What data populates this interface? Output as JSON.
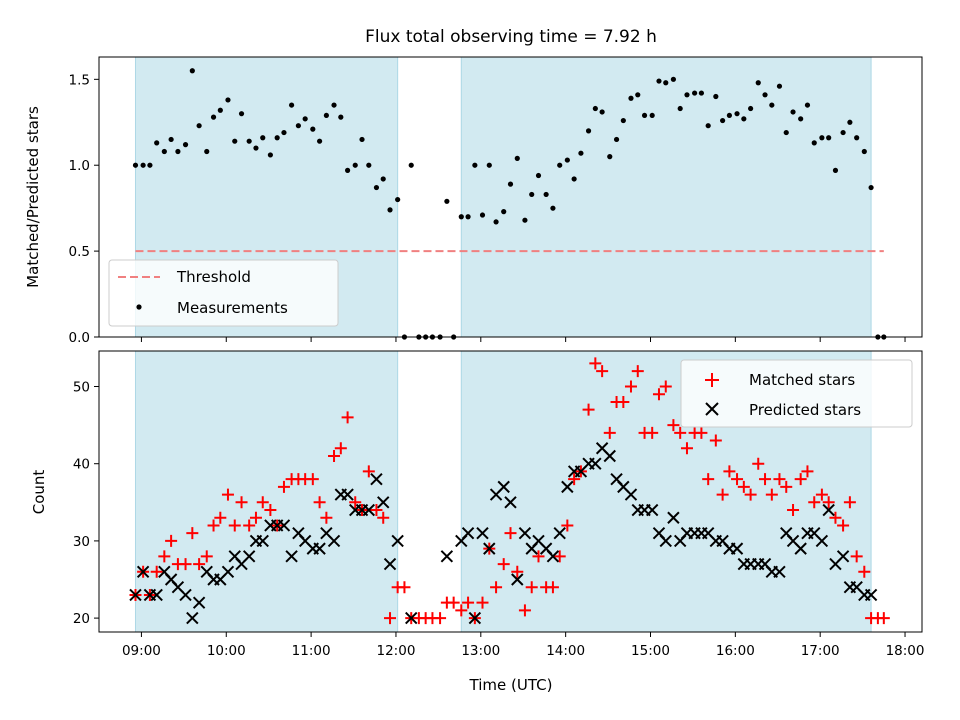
{
  "title": "Flux total observing time = 7.92 h",
  "colors": {
    "shade": "#add8e6",
    "threshold": "#f08080",
    "measurement": "#000000",
    "matched": "#ff0000",
    "predicted": "#000000"
  },
  "chart_data": [
    {
      "type": "scatter",
      "title": "Flux total observing time = 7.92 h",
      "xlabel": "",
      "ylabel": "Matched/Predicted stars",
      "x_unit": "hours (UTC)",
      "xlim": [
        8.5,
        18.2
      ],
      "ylim": [
        0,
        1.63
      ],
      "yticks": [
        0.0,
        0.5,
        1.0,
        1.5
      ],
      "ytick_labels": [
        "0.0",
        "0.5",
        "1.0",
        "1.5"
      ],
      "xticks": [
        9,
        10,
        11,
        12,
        13,
        14,
        15,
        16,
        17,
        18
      ],
      "xtick_labels": [
        "09:00",
        "10:00",
        "11:00",
        "12:00",
        "13:00",
        "14:00",
        "15:00",
        "16:00",
        "17:00",
        "18:00"
      ],
      "shaded_intervals": [
        [
          8.93,
          12.02
        ],
        [
          12.77,
          17.6
        ]
      ],
      "threshold": {
        "name": "Threshold",
        "y": 0.5,
        "x_range": [
          8.93,
          17.75
        ]
      },
      "legend": {
        "position": "lower-left",
        "entries": [
          "Threshold",
          "Measurements"
        ]
      },
      "series": [
        {
          "name": "Measurements",
          "x": [
            8.93,
            9.02,
            9.1,
            9.18,
            9.27,
            9.35,
            9.43,
            9.52,
            9.6,
            9.68,
            9.77,
            9.85,
            9.93,
            10.02,
            10.1,
            10.18,
            10.27,
            10.35,
            10.43,
            10.52,
            10.6,
            10.68,
            10.77,
            10.85,
            10.93,
            11.02,
            11.1,
            11.18,
            11.27,
            11.35,
            11.43,
            11.52,
            11.6,
            11.68,
            11.77,
            11.85,
            11.93,
            12.02,
            12.1,
            12.18,
            12.27,
            12.35,
            12.43,
            12.52,
            12.6,
            12.68,
            12.77,
            12.85,
            12.93,
            13.02,
            13.1,
            13.18,
            13.27,
            13.35,
            13.43,
            13.52,
            13.6,
            13.68,
            13.77,
            13.85,
            13.93,
            14.02,
            14.1,
            14.18,
            14.27,
            14.35,
            14.43,
            14.52,
            14.6,
            14.68,
            14.77,
            14.85,
            14.93,
            15.02,
            15.1,
            15.18,
            15.27,
            15.35,
            15.43,
            15.52,
            15.6,
            15.68,
            15.77,
            15.85,
            15.93,
            16.02,
            16.1,
            16.18,
            16.27,
            16.35,
            16.43,
            16.52,
            16.6,
            16.68,
            16.77,
            16.85,
            16.93,
            17.02,
            17.1,
            17.18,
            17.27,
            17.35,
            17.43,
            17.52,
            17.6,
            17.68,
            17.75
          ],
          "y": [
            1.0,
            1.0,
            1.0,
            1.13,
            1.08,
            1.15,
            1.08,
            1.12,
            1.55,
            1.23,
            1.08,
            1.28,
            1.32,
            1.38,
            1.14,
            1.3,
            1.14,
            1.1,
            1.16,
            1.06,
            1.16,
            1.19,
            1.35,
            1.23,
            1.27,
            1.21,
            1.14,
            1.29,
            1.35,
            1.28,
            0.97,
            1.0,
            1.15,
            1.0,
            0.87,
            0.92,
            0.74,
            0.8,
            0.0,
            1.0,
            0.0,
            0.0,
            0.0,
            0.0,
            0.79,
            0.0,
            0.7,
            0.7,
            1.0,
            0.71,
            1.0,
            0.67,
            0.73,
            0.89,
            1.04,
            0.68,
            0.83,
            0.94,
            0.83,
            0.75,
            1.0,
            1.03,
            0.92,
            1.07,
            1.2,
            1.33,
            1.31,
            1.05,
            1.15,
            1.26,
            1.39,
            1.41,
            1.29,
            1.29,
            1.49,
            1.48,
            1.5,
            1.33,
            1.41,
            1.42,
            1.42,
            1.23,
            1.4,
            1.26,
            1.29,
            1.3,
            1.27,
            1.33,
            1.48,
            1.41,
            1.35,
            1.46,
            1.19,
            1.31,
            1.27,
            1.35,
            1.13,
            1.16,
            1.16,
            0.97,
            1.19,
            1.25,
            1.16,
            1.08,
            0.87,
            0.0,
            0.0
          ]
        }
      ]
    },
    {
      "type": "scatter",
      "xlabel": "Time (UTC)",
      "ylabel": "Count",
      "x_unit": "hours (UTC)",
      "xlim": [
        8.5,
        18.2
      ],
      "ylim": [
        18.2,
        54.6
      ],
      "yticks": [
        20,
        30,
        40,
        50
      ],
      "ytick_labels": [
        "20",
        "30",
        "40",
        "50"
      ],
      "xticks": [
        9,
        10,
        11,
        12,
        13,
        14,
        15,
        16,
        17,
        18
      ],
      "xtick_labels": [
        "09:00",
        "10:00",
        "11:00",
        "12:00",
        "13:00",
        "14:00",
        "15:00",
        "16:00",
        "17:00",
        "18:00"
      ],
      "shaded_intervals": [
        [
          8.93,
          12.02
        ],
        [
          12.77,
          17.6
        ]
      ],
      "legend": {
        "position": "top-right",
        "entries": [
          "Matched stars",
          "Predicted stars"
        ]
      },
      "series": [
        {
          "name": "Matched stars",
          "x": [
            8.93,
            9.02,
            9.1,
            9.18,
            9.27,
            9.35,
            9.43,
            9.52,
            9.6,
            9.68,
            9.77,
            9.85,
            9.93,
            10.02,
            10.1,
            10.18,
            10.27,
            10.35,
            10.43,
            10.52,
            10.6,
            10.68,
            10.77,
            10.85,
            10.93,
            11.02,
            11.1,
            11.18,
            11.27,
            11.35,
            11.43,
            11.52,
            11.6,
            11.68,
            11.77,
            11.85,
            11.93,
            12.02,
            12.1,
            12.18,
            12.27,
            12.35,
            12.43,
            12.52,
            12.6,
            12.68,
            12.77,
            12.85,
            12.93,
            13.02,
            13.1,
            13.18,
            13.27,
            13.35,
            13.43,
            13.52,
            13.6,
            13.68,
            13.77,
            13.85,
            13.93,
            14.02,
            14.1,
            14.18,
            14.27,
            14.35,
            14.43,
            14.52,
            14.6,
            14.68,
            14.77,
            14.85,
            14.93,
            15.02,
            15.1,
            15.18,
            15.27,
            15.35,
            15.43,
            15.52,
            15.6,
            15.68,
            15.77,
            15.85,
            15.93,
            16.02,
            16.1,
            16.18,
            16.27,
            16.35,
            16.43,
            16.52,
            16.6,
            16.68,
            16.77,
            16.85,
            16.93,
            17.02,
            17.1,
            17.18,
            17.27,
            17.35,
            17.43,
            17.52,
            17.6,
            17.68,
            17.75
          ],
          "y": [
            23,
            26,
            23,
            26,
            28,
            30,
            27,
            27,
            31,
            27,
            28,
            32,
            33,
            36,
            32,
            35,
            32,
            33,
            35,
            34,
            32,
            37,
            38,
            38,
            38,
            38,
            35,
            33,
            41,
            42,
            46,
            35,
            34,
            39,
            34,
            33,
            20,
            24,
            24,
            20,
            20,
            20,
            20,
            20,
            22,
            22,
            21,
            22,
            20,
            22,
            29,
            24,
            27,
            31,
            26,
            21,
            24,
            28,
            24,
            24,
            28,
            32,
            38,
            39,
            47,
            53,
            52,
            44,
            48,
            48,
            50,
            52,
            44,
            44,
            49,
            50,
            45,
            44,
            42,
            44,
            44,
            38,
            43,
            36,
            39,
            38,
            37,
            36,
            40,
            38,
            36,
            38,
            37,
            34,
            38,
            39,
            35,
            36,
            35,
            33,
            32,
            35,
            28,
            26,
            20,
            20,
            20
          ]
        },
        {
          "name": "Predicted stars",
          "x": [
            8.93,
            9.02,
            9.1,
            9.18,
            9.27,
            9.35,
            9.43,
            9.52,
            9.6,
            9.68,
            9.77,
            9.85,
            9.93,
            10.02,
            10.1,
            10.18,
            10.27,
            10.35,
            10.43,
            10.52,
            10.6,
            10.68,
            10.77,
            10.85,
            10.93,
            11.02,
            11.1,
            11.18,
            11.27,
            11.35,
            11.43,
            11.52,
            11.6,
            11.68,
            11.77,
            11.85,
            11.93,
            12.02,
            12.18,
            12.6,
            12.77,
            12.85,
            12.93,
            13.02,
            13.1,
            13.18,
            13.27,
            13.35,
            13.43,
            13.52,
            13.6,
            13.68,
            13.77,
            13.85,
            13.93,
            14.02,
            14.1,
            14.18,
            14.27,
            14.35,
            14.43,
            14.52,
            14.6,
            14.68,
            14.77,
            14.85,
            14.93,
            15.02,
            15.1,
            15.18,
            15.27,
            15.35,
            15.43,
            15.52,
            15.6,
            15.68,
            15.77,
            15.85,
            15.93,
            16.02,
            16.1,
            16.18,
            16.27,
            16.35,
            16.43,
            16.52,
            16.6,
            16.68,
            16.77,
            16.85,
            16.93,
            17.02,
            17.1,
            17.18,
            17.27,
            17.35,
            17.43,
            17.52,
            17.6
          ],
          "y": [
            23,
            26,
            23,
            23,
            26,
            25,
            24,
            23,
            20,
            22,
            26,
            25,
            25,
            26,
            28,
            27,
            28,
            30,
            30,
            32,
            32,
            32,
            28,
            31,
            30,
            29,
            29,
            31,
            30,
            36,
            36,
            34,
            34,
            34,
            38,
            35,
            27,
            30,
            20,
            28,
            30,
            31,
            20,
            31,
            29,
            36,
            37,
            35,
            25,
            31,
            29,
            30,
            29,
            28,
            31,
            37,
            39,
            39,
            40,
            40,
            42,
            41,
            38,
            37,
            36,
            34,
            34,
            34,
            31,
            30,
            33,
            30,
            31,
            31,
            31,
            31,
            30,
            30,
            29,
            29,
            27,
            27,
            27,
            27,
            26,
            26,
            31,
            30,
            29,
            31,
            31,
            30,
            34,
            27,
            28,
            24,
            24,
            23,
            23
          ]
        }
      ]
    }
  ]
}
